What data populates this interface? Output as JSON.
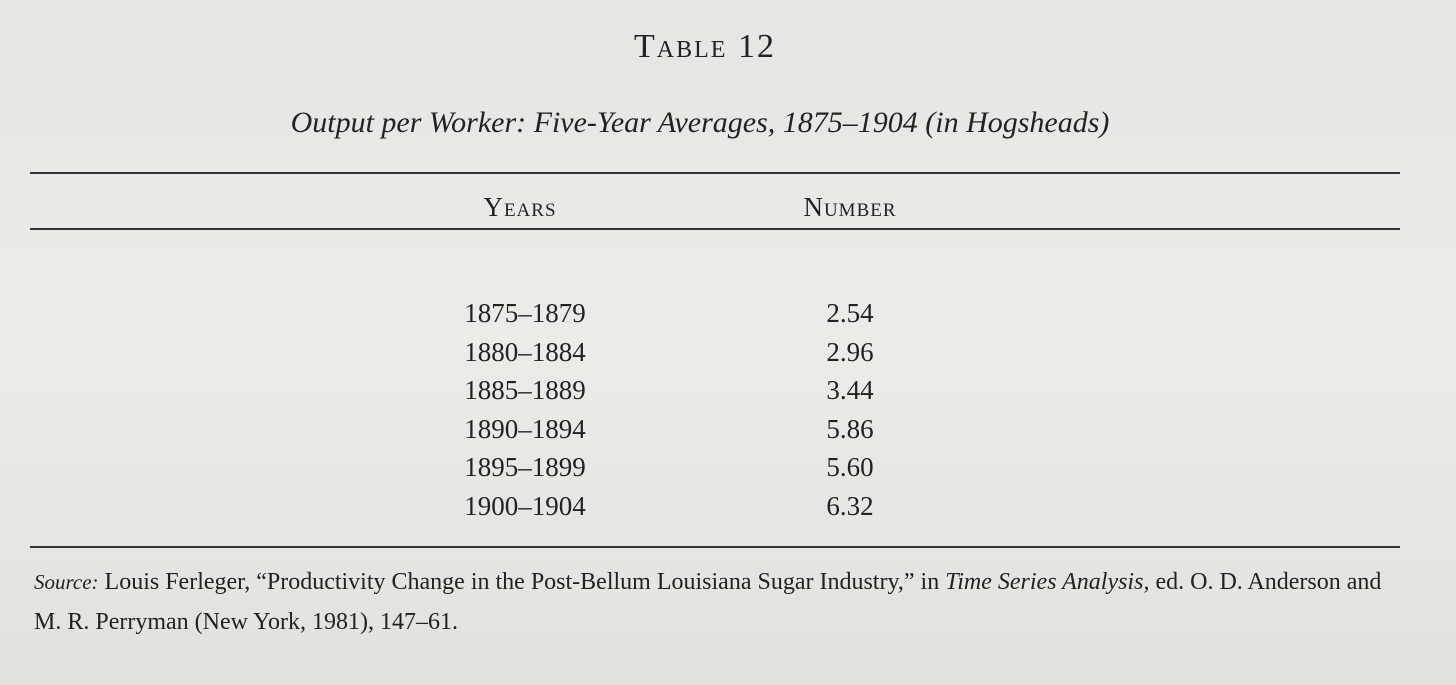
{
  "table": {
    "label": "Table 12",
    "caption": "Output per Worker: Five-Year Averages, 1875–1904 (in Hogsheads)",
    "columns": [
      "Years",
      "Number"
    ],
    "rows": [
      [
        "1875–1879",
        "2.54"
      ],
      [
        "1880–1884",
        "2.96"
      ],
      [
        "1885–1889",
        "3.44"
      ],
      [
        "1890–1894",
        "5.86"
      ],
      [
        "1895–1899",
        "5.60"
      ],
      [
        "1900–1904",
        "6.32"
      ]
    ],
    "source": {
      "label": "Source:",
      "text": "Louis Ferleger, “Productivity Change in the Post-Bellum Louisiana Sugar Industry,” in",
      "work": "Time Series Analysis,",
      "rest": "ed. O. D. Anderson and M. R. Perryman (New York, 1981), 147–61."
    }
  }
}
